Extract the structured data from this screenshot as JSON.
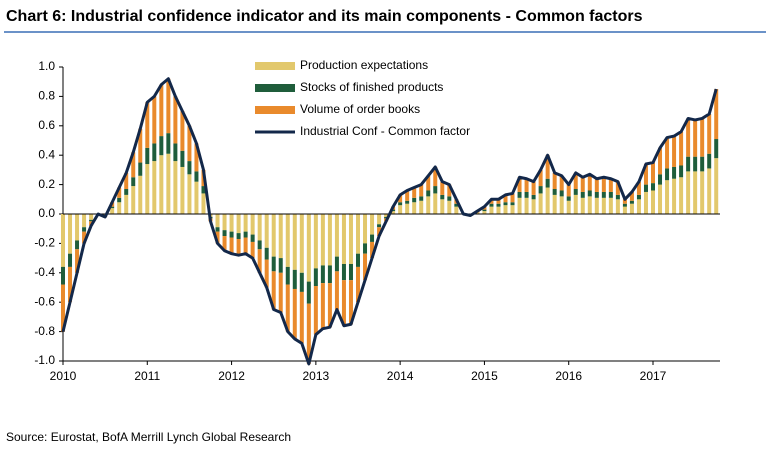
{
  "chart_data": {
    "type": "bar",
    "stacked": true,
    "title": "Chart 6: Industrial confidence indicator and its main components - Common factors",
    "source": "Source: Eurostat, BofA Merrill Lynch Global Research",
    "categories": [
      "2010",
      null,
      null,
      null,
      null,
      null,
      null,
      null,
      null,
      null,
      null,
      null,
      "2011",
      null,
      null,
      null,
      null,
      null,
      null,
      null,
      null,
      null,
      null,
      null,
      "2012",
      null,
      null,
      null,
      null,
      null,
      null,
      null,
      null,
      null,
      null,
      null,
      "2013",
      null,
      null,
      null,
      null,
      null,
      null,
      null,
      null,
      null,
      null,
      null,
      "2014",
      null,
      null,
      null,
      null,
      null,
      null,
      null,
      null,
      null,
      null,
      null,
      "2015",
      null,
      null,
      null,
      null,
      null,
      null,
      null,
      null,
      null,
      null,
      null,
      "2016",
      null,
      null,
      null,
      null,
      null,
      null,
      null,
      null,
      null,
      null,
      null,
      "2017",
      null,
      null,
      null,
      null,
      null,
      null,
      null,
      null,
      null
    ],
    "ylim": [
      -1,
      1
    ],
    "yticks": [
      {
        "value": 1,
        "label": "1.0"
      },
      {
        "value": 0.8,
        "label": "0.8"
      },
      {
        "value": 0.6,
        "label": "0.6"
      },
      {
        "value": 0.4,
        "label": "0.4"
      },
      {
        "value": 0.2,
        "label": "0.2"
      },
      {
        "value": 0,
        "label": "0.0"
      },
      {
        "value": -0.2,
        "label": "-0.2"
      },
      {
        "value": -0.4,
        "label": "-0.4"
      },
      {
        "value": -0.6,
        "label": "-0.6"
      },
      {
        "value": -0.8,
        "label": "-0.8"
      },
      {
        "value": -1,
        "label": "-1.0"
      }
    ],
    "grid": false,
    "series": [
      {
        "name": "Production expectations",
        "color": "#e2c86c",
        "values": [
          -0.36,
          -0.27,
          -0.18,
          -0.09,
          -0.04,
          0,
          -0.01,
          0.04,
          0.08,
          0.13,
          0.19,
          0.26,
          0.34,
          0.36,
          0.4,
          0.41,
          0.36,
          0.32,
          0.27,
          0.22,
          0.14,
          -0.02,
          -0.09,
          -0.11,
          -0.12,
          -0.13,
          -0.12,
          -0.14,
          -0.18,
          -0.23,
          -0.29,
          -0.3,
          -0.36,
          -0.38,
          -0.4,
          -0.46,
          -0.37,
          -0.35,
          -0.35,
          -0.29,
          -0.34,
          -0.34,
          -0.27,
          -0.2,
          -0.14,
          -0.07,
          -0.02,
          0.02,
          0.06,
          0.07,
          0.08,
          0.09,
          0.12,
          0.14,
          0.1,
          0.09,
          0.05,
          0,
          0,
          0.01,
          0.02,
          0.05,
          0.05,
          0.06,
          0.06,
          0.11,
          0.11,
          0.1,
          0.14,
          0.18,
          0.13,
          0.12,
          0.09,
          0.13,
          0.11,
          0.12,
          0.11,
          0.11,
          0.11,
          0.1,
          0.05,
          0.07,
          0.1,
          0.15,
          0.16,
          0.2,
          0.23,
          0.24,
          0.25,
          0.29,
          0.29,
          0.29,
          0.31,
          0.38
        ]
      },
      {
        "name": "Stocks of finished products",
        "color": "#1f5d3b",
        "values": [
          -0.12,
          -0.09,
          -0.06,
          -0.03,
          -0.01,
          0,
          0,
          0.01,
          0.03,
          0.04,
          0.06,
          0.09,
          0.11,
          0.12,
          0.13,
          0.14,
          0.12,
          0.11,
          0.09,
          0.07,
          0.05,
          -0.01,
          -0.03,
          -0.04,
          -0.04,
          -0.04,
          -0.04,
          -0.05,
          -0.06,
          -0.08,
          -0.1,
          -0.1,
          -0.12,
          -0.13,
          -0.13,
          -0.15,
          -0.12,
          -0.12,
          -0.12,
          -0.1,
          -0.11,
          -0.11,
          -0.09,
          -0.07,
          -0.05,
          -0.02,
          -0.01,
          0.01,
          0.02,
          0.02,
          0.03,
          0.03,
          0.04,
          0.05,
          0.03,
          0.03,
          0.02,
          0,
          0,
          0,
          0.01,
          0.02,
          0.02,
          0.02,
          0.02,
          0.04,
          0.04,
          0.03,
          0.05,
          0.06,
          0.04,
          0.04,
          0.03,
          0.04,
          0.04,
          0.04,
          0.04,
          0.04,
          0.04,
          0.03,
          0.02,
          0.02,
          0.03,
          0.05,
          0.05,
          0.07,
          0.08,
          0.08,
          0.08,
          0.1,
          0.1,
          0.1,
          0.1,
          0.13
        ]
      },
      {
        "name": "Volume of order books",
        "color": "#e98a2c",
        "values": [
          -0.32,
          -0.24,
          -0.16,
          -0.08,
          -0.03,
          0,
          -0.01,
          0.03,
          0.07,
          0.11,
          0.17,
          0.23,
          0.31,
          0.32,
          0.35,
          0.37,
          0.32,
          0.27,
          0.24,
          0.19,
          0.11,
          -0.02,
          -0.08,
          -0.1,
          -0.11,
          -0.11,
          -0.11,
          -0.11,
          -0.16,
          -0.19,
          -0.26,
          -0.27,
          -0.32,
          -0.34,
          -0.35,
          -0.41,
          -0.33,
          -0.31,
          -0.3,
          -0.26,
          -0.31,
          -0.3,
          -0.24,
          -0.18,
          -0.11,
          -0.06,
          -0.02,
          0.02,
          0.05,
          0.07,
          0.07,
          0.08,
          0.1,
          0.13,
          0.09,
          0.08,
          0.03,
          0,
          -0.01,
          0.01,
          0.02,
          0.03,
          0.03,
          0.05,
          0.06,
          0.1,
          0.09,
          0.09,
          0.11,
          0.16,
          0.11,
          0.1,
          0.08,
          0.11,
          0.1,
          0.11,
          0.09,
          0.1,
          0.09,
          0.09,
          0.03,
          0.06,
          0.09,
          0.14,
          0.14,
          0.18,
          0.21,
          0.21,
          0.23,
          0.26,
          0.25,
          0.26,
          0.27,
          0.34
        ]
      },
      {
        "name": "Industrial Conf - Common factor",
        "color": "#13284a",
        "type": "line",
        "values": [
          -0.8,
          -0.6,
          -0.4,
          -0.2,
          -0.08,
          0.0,
          -0.02,
          0.08,
          0.18,
          0.28,
          0.42,
          0.58,
          0.76,
          0.8,
          0.88,
          0.92,
          0.8,
          0.7,
          0.6,
          0.48,
          0.3,
          -0.05,
          -0.2,
          -0.25,
          -0.27,
          -0.28,
          -0.27,
          -0.3,
          -0.4,
          -0.5,
          -0.65,
          -0.67,
          -0.8,
          -0.85,
          -0.88,
          -1.02,
          -0.82,
          -0.78,
          -0.77,
          -0.65,
          -0.76,
          -0.75,
          -0.6,
          -0.45,
          -0.3,
          -0.15,
          -0.05,
          0.05,
          0.13,
          0.16,
          0.18,
          0.2,
          0.26,
          0.32,
          0.22,
          0.2,
          0.1,
          0.0,
          -0.01,
          0.02,
          0.05,
          0.1,
          0.1,
          0.13,
          0.14,
          0.25,
          0.24,
          0.22,
          0.3,
          0.4,
          0.28,
          0.26,
          0.2,
          0.28,
          0.25,
          0.27,
          0.24,
          0.25,
          0.24,
          0.22,
          0.1,
          0.15,
          0.22,
          0.34,
          0.35,
          0.45,
          0.52,
          0.53,
          0.56,
          0.65,
          0.64,
          0.65,
          0.68,
          0.85
        ]
      }
    ]
  }
}
